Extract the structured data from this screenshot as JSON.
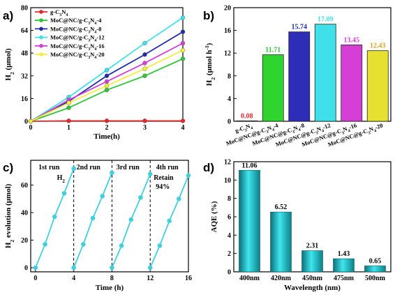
{
  "panels": {
    "a": "a)",
    "b": "b)",
    "c": "c)",
    "d": "d)"
  },
  "chart_data": [
    {
      "type": "line",
      "panel": "a",
      "xlabel": "Time(h)",
      "ylabel_main": "H",
      "ylabel_sub": "2",
      "ylabel_unit": "(μmol)",
      "xlim": [
        0,
        4
      ],
      "ylim": [
        0,
        80
      ],
      "xticks": [
        0,
        1,
        2,
        3,
        4
      ],
      "yticks": [
        0,
        16,
        32,
        48,
        64,
        80
      ],
      "x": [
        0,
        1,
        2,
        3,
        4
      ],
      "legend_position": "top-left",
      "series": [
        {
          "name": "g-C3N4",
          "name_parts": [
            "g-C",
            "3",
            "N",
            "4",
            ""
          ],
          "color": "#e8262b",
          "values": [
            0,
            0.3,
            0.3,
            0.3,
            0.3
          ]
        },
        {
          "name": "MoC@NC/g-C3N4-4",
          "name_parts": [
            "MoC@NC/g-C",
            "3",
            "N",
            "4",
            "-4"
          ],
          "color": "#2fc43a",
          "values": [
            0,
            9.5,
            22,
            32,
            44
          ]
        },
        {
          "name": "MoC@NC/g-C3N4-8",
          "name_parts": [
            "MoC@NC/g-C",
            "3",
            "N",
            "4",
            "-8"
          ],
          "color": "#1f2bb0",
          "values": [
            0,
            14,
            32,
            47,
            63
          ]
        },
        {
          "name": "MoC@NC/g-C3N4-12",
          "name_parts": [
            "MoC@NC/g-C",
            "3",
            "N",
            "4",
            "-12"
          ],
          "color": "#3fe0ea",
          "values": [
            0,
            17,
            36,
            55,
            73
          ]
        },
        {
          "name": "MoC@NC/g-C3N4-16",
          "name_parts": [
            "MoC@NC/g-C",
            "3",
            "N",
            "4",
            "-16"
          ],
          "color": "#d63fd6",
          "values": [
            0,
            15,
            28,
            41,
            55
          ]
        },
        {
          "name": "MoC@NC/g-C3N4-20",
          "name_parts": [
            "MoC@NC/g-C",
            "3",
            "N",
            "4",
            "-20"
          ],
          "color": "#f2ee3a",
          "values": [
            0,
            13,
            25,
            37,
            50
          ]
        }
      ]
    },
    {
      "type": "bar",
      "panel": "b",
      "ylabel_main": "H",
      "ylabel_sub": "2",
      "ylabel_unit": "(μmol h",
      "ylabel_sup": "-1",
      "ylabel_close": ")",
      "ylim": [
        0,
        20
      ],
      "yticks": [
        0,
        4,
        8,
        12,
        16,
        20
      ],
      "categories": [
        "g-C3N4",
        "MoC@NC@g-C3N4-4",
        "MoC@NC@g-C3N4-8",
        "MoC@NC@g-C3N4-12",
        "MoC@NC@g-C3N4-16",
        "MoC@NC@g-C3N4-20"
      ],
      "category_parts": [
        [
          "g-C",
          "3",
          "N",
          "4",
          ""
        ],
        [
          "MoC@NC@g-C",
          "3",
          "N",
          "4",
          "-4"
        ],
        [
          "MoC@NC@g-C",
          "3",
          "N",
          "4",
          "-8"
        ],
        [
          "MoC@NC@g-C",
          "3",
          "N",
          "4",
          "-12"
        ],
        [
          "MoC@NC@g-C",
          "3",
          "N",
          "4",
          "-16"
        ],
        [
          "MoC@NC@g-C",
          "3",
          "N",
          "4",
          "-20"
        ]
      ],
      "values": [
        0.08,
        11.71,
        15.74,
        17.09,
        13.45,
        12.43
      ],
      "value_labels": [
        "0.08",
        "11.71",
        "15.74",
        "17.09",
        "13.45",
        "12.43"
      ],
      "colors": [
        "#e8262b",
        "#2fd42f",
        "#2d2db8",
        "#3fe0ea",
        "#d63fd6",
        "#e6e030"
      ],
      "label_colors": [
        "#e8262b",
        "#2fc43a",
        "#1f2bb0",
        "#3fe0ea",
        "#d63fd6",
        "#e0a020"
      ]
    },
    {
      "type": "line",
      "panel": "c",
      "xlabel": "Time (h)",
      "ylabel_main": "H",
      "ylabel_sub": "2",
      "ylabel_unit": " evolution (μmol)",
      "xlim": [
        -0.5,
        16
      ],
      "ylim": [
        -3,
        78
      ],
      "xticks": [
        0,
        4,
        8,
        12,
        16
      ],
      "yticks": [
        0,
        20,
        40,
        60
      ],
      "run_labels": [
        "1st run",
        "2nd run",
        "3rd run",
        "4th run"
      ],
      "run_dividers": [
        4,
        8,
        12
      ],
      "series_label_main": "H",
      "series_label_sub": "2",
      "annotation": [
        "Retain",
        "94%"
      ],
      "color": "#3fcfdf",
      "runs": [
        {
          "x": [
            0,
            1,
            2,
            3,
            4
          ],
          "values": [
            0,
            17,
            37,
            54,
            72
          ]
        },
        {
          "x": [
            4,
            5,
            6,
            7,
            8
          ],
          "values": [
            0,
            17,
            36,
            52,
            69
          ]
        },
        {
          "x": [
            8,
            9,
            10,
            11,
            12
          ],
          "values": [
            0,
            16,
            35,
            51,
            68
          ]
        },
        {
          "x": [
            12,
            13,
            14,
            15,
            16
          ],
          "values": [
            0,
            16,
            34,
            50,
            67
          ]
        }
      ]
    },
    {
      "type": "bar",
      "panel": "d",
      "xlabel": "Wavelength (nm)",
      "ylabel": "AQE (%)",
      "ylim": [
        0,
        12
      ],
      "yticks": [
        0,
        2,
        4,
        6,
        8,
        10,
        12
      ],
      "categories": [
        "400nm",
        "420nm",
        "450nm",
        "475nm",
        "500nm"
      ],
      "values": [
        11.06,
        6.52,
        2.31,
        1.43,
        0.65
      ],
      "value_labels": [
        "11.06",
        "6.52",
        "2.31",
        "1.43",
        "0.65"
      ],
      "color": "#1aa7b4"
    }
  ]
}
